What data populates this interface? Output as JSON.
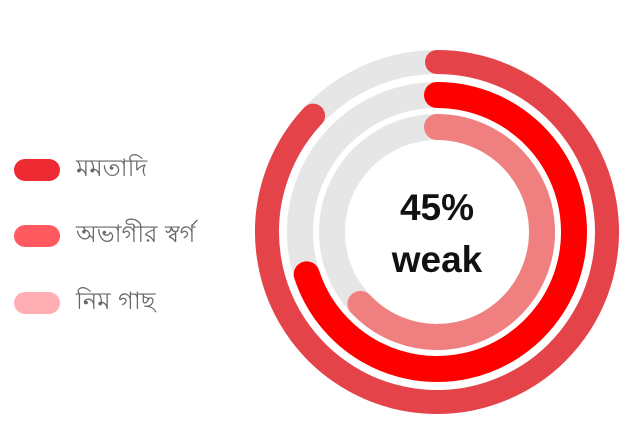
{
  "chart_data": {
    "type": "radial-bar",
    "track_color": "#e6e6e6",
    "center": {
      "value": "45%",
      "label": "weak"
    },
    "series": [
      {
        "name": "মমতাদি",
        "value": 87,
        "color": "#e5434a"
      },
      {
        "name": "অভাগীর স্বর্গ",
        "value": 70,
        "color": "#ff0000"
      },
      {
        "name": "নিম গাছ",
        "value": 63,
        "color": "#f08080"
      }
    ],
    "legend": {
      "position": "left",
      "colors": [
        "#ee2a32",
        "#ff5a5f",
        "#ffafb3"
      ]
    }
  }
}
